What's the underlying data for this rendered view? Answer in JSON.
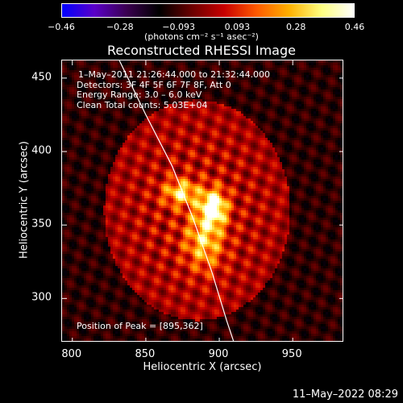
{
  "colorbar": {
    "ticks": [
      "−0.46",
      "−0.28",
      "−0.093",
      "0.093",
      "0.28",
      "0.46"
    ],
    "units": "(photons cm⁻² s⁻¹ asec⁻²)",
    "colors": [
      "#0000ff",
      "#5a00c8",
      "#3a0050",
      "#000000",
      "#6a0000",
      "#c80000",
      "#ff5a00",
      "#ffb000",
      "#ffff80",
      "#ffffff"
    ]
  },
  "chart_data": {
    "type": "heatmap",
    "title": "Reconstructed RHESSI Image",
    "xlabel": "Heliocentric X (arcsec)",
    "ylabel": "Heliocentric Y (arcsec)",
    "xlim": [
      793,
      985
    ],
    "ylim": [
      270,
      462
    ],
    "x_ticks": [
      800,
      850,
      900,
      950
    ],
    "y_ticks": [
      300,
      350,
      400,
      450
    ],
    "clim": [
      -0.46,
      0.46
    ],
    "peak": {
      "x": 895,
      "y": 362
    },
    "limb_curve": [
      [
        832,
        462
      ],
      [
        850,
        425
      ],
      [
        868,
        390
      ],
      [
        882,
        355
      ],
      [
        895,
        318
      ],
      [
        905,
        285
      ],
      [
        910,
        270
      ]
    ],
    "sources": [
      {
        "x": 896,
        "y": 362,
        "sx": 6,
        "sy": 8,
        "amp": 0.46
      },
      {
        "x": 874,
        "y": 372,
        "sx": 8,
        "sy": 6,
        "amp": 0.3
      },
      {
        "x": 890,
        "y": 340,
        "sx": 9,
        "sy": 14,
        "amp": 0.26
      }
    ]
  },
  "annotations": {
    "time": "1–May–2011 21:26:44.000 to 21:32:44.000",
    "detectors": "Detectors: 3F 4F 5F 6F 7F 8F, Att 0",
    "energy": "Energy Range: 3.0 – 6.0 keV",
    "clean": "Clean     Total counts: 5.03E+04",
    "peak": "Position of Peak = [895,362]"
  },
  "footer": "11–May–2022 08:29"
}
